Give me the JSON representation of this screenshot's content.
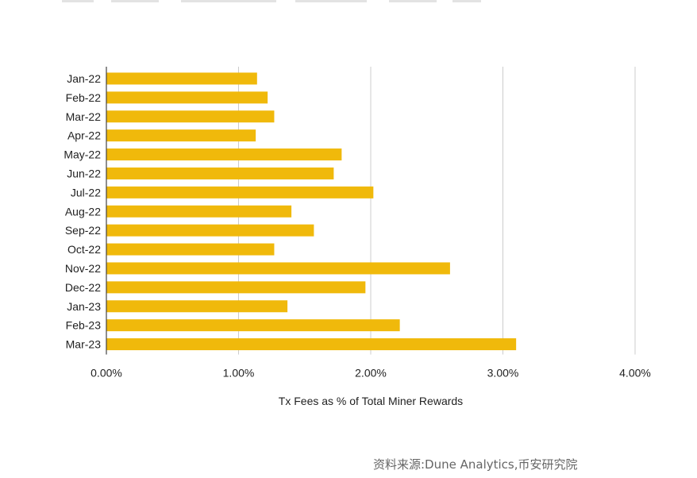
{
  "chart_data": {
    "type": "bar",
    "orientation": "horizontal",
    "categories": [
      "Jan-22",
      "Feb-22",
      "Mar-22",
      "Apr-22",
      "May-22",
      "Jun-22",
      "Jul-22",
      "Aug-22",
      "Sep-22",
      "Oct-22",
      "Nov-22",
      "Dec-22",
      "Jan-23",
      "Feb-23",
      "Mar-23"
    ],
    "values": [
      1.14,
      1.22,
      1.27,
      1.13,
      1.78,
      1.72,
      2.02,
      1.4,
      1.57,
      1.27,
      2.6,
      1.96,
      1.37,
      2.22,
      3.1
    ],
    "xlabel": "Tx Fees as % of Total Miner Rewards",
    "ylabel": "",
    "xlim": [
      0,
      4
    ],
    "xticks": [
      "0.00%",
      "1.00%",
      "2.00%",
      "3.00%",
      "4.00%"
    ],
    "grid": "vertical",
    "bar_color": "#f0b90b"
  },
  "source": "资料来源:Dune Analytics,币安研究院"
}
